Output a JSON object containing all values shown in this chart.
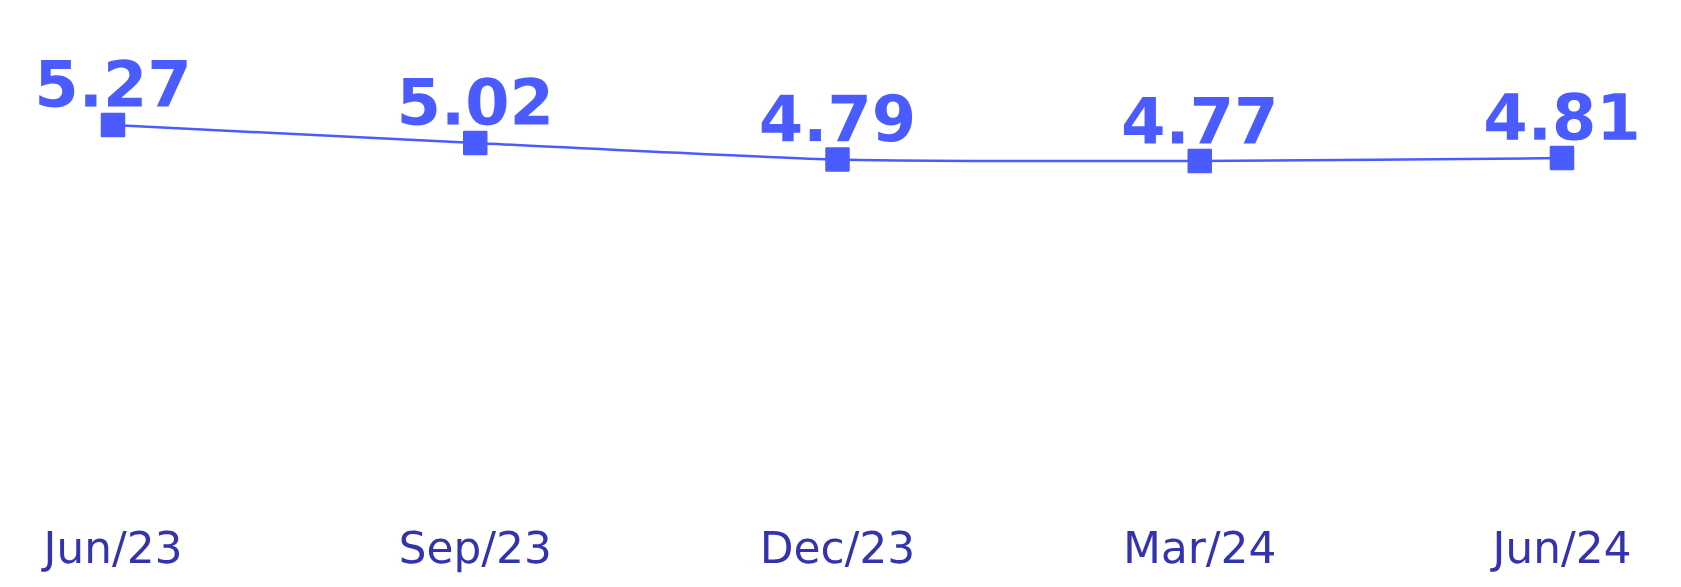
{
  "chart_data": {
    "type": "line",
    "categories": [
      "Jun/23",
      "Sep/23",
      "Dec/23",
      "Mar/24",
      "Jun/24"
    ],
    "series": [
      {
        "color": "#4a5cff",
        "values": [
          5.27,
          5.02,
          4.79,
          4.77,
          4.81
        ]
      }
    ],
    "tick_labels": "x",
    "data_labels": true,
    "marker": "square"
  }
}
